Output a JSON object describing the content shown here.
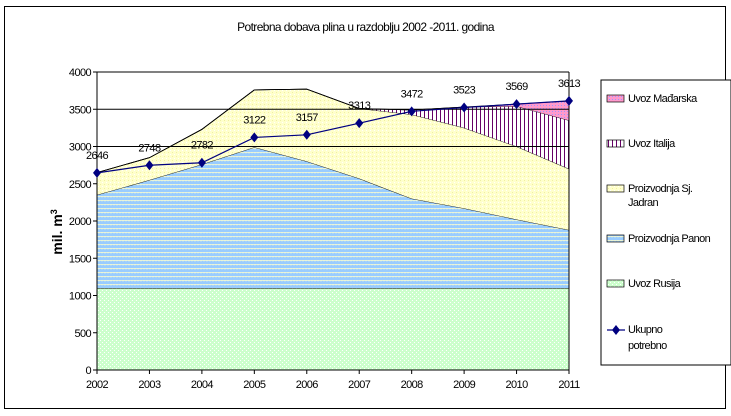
{
  "chart_data": {
    "type": "area",
    "title": "Potrebna dobava plina u razdoblju 2002 -2011. godina",
    "xlabel": "",
    "ylabel": "mil. m3",
    "ylim": [
      0,
      4000
    ],
    "yticks": [
      0,
      500,
      1000,
      1500,
      2000,
      2500,
      3000,
      3500,
      4000
    ],
    "categories": [
      "2002",
      "2003",
      "2004",
      "2005",
      "2006",
      "2007",
      "2008",
      "2009",
      "2010",
      "2011"
    ],
    "grid": "horizontal at 3000, 3500, 4000",
    "legend_placement": "right",
    "stacked_series": [
      {
        "name": "Uvoz Rusija",
        "color": "#ccffcc",
        "values": [
          1100,
          1100,
          1100,
          1100,
          1100,
          1100,
          1100,
          1100,
          1100,
          1100
        ]
      },
      {
        "name": "Proizvodnja Panon",
        "color": "#99ccff",
        "values": [
          1250,
          1450,
          1660,
          1890,
          1700,
          1470,
          1200,
          1070,
          920,
          780
        ]
      },
      {
        "name": "Proizvodnja Sj. Jadran",
        "color": "#ffffcc",
        "values": [
          300,
          300,
          470,
          770,
          970,
          940,
          1130,
          1080,
          980,
          820
        ]
      },
      {
        "name": "Uvoz Italija",
        "color": "#660066",
        "values": [
          0,
          0,
          0,
          0,
          0,
          0,
          60,
          280,
          540,
          650
        ]
      },
      {
        "name": "Uvoz Mađarska",
        "color": "#9999ff",
        "values": [
          0,
          0,
          0,
          0,
          0,
          0,
          0,
          0,
          30,
          260
        ]
      }
    ],
    "line_series": {
      "name": "Ukupno potrebno",
      "color": "#000080",
      "values": [
        2646,
        2748,
        2782,
        3122,
        3157,
        3313,
        3472,
        3523,
        3569,
        3613
      ]
    },
    "legend": [
      "Uvoz Mađarska",
      "Uvoz Italija",
      "Proizvodnja Sj. Jadran",
      "Proizvodnja Panon",
      "Uvoz Rusija",
      "Ukupno potrebno"
    ]
  }
}
